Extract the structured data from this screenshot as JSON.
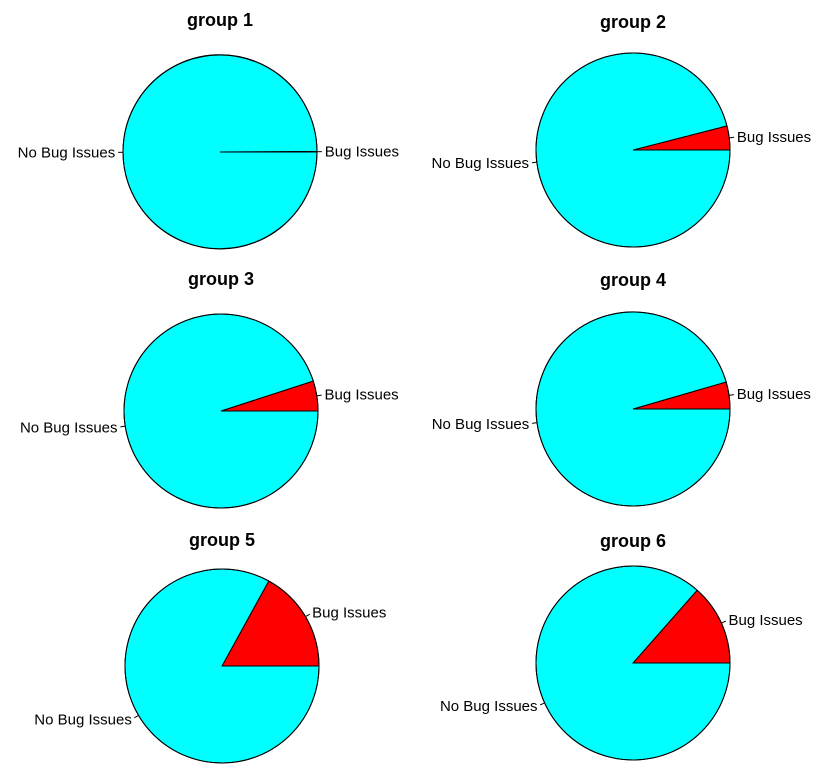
{
  "chart_data": [
    {
      "type": "pie",
      "title": "group 1",
      "slices": [
        {
          "label": "Bug Issues",
          "value": 0.001,
          "color": "#FF0000"
        },
        {
          "label": "No Bug Issues",
          "value": 0.999,
          "color": "#00FFFF"
        }
      ]
    },
    {
      "type": "pie",
      "title": "group 2",
      "slices": [
        {
          "label": "Bug Issues",
          "value": 0.04,
          "color": "#FF0000"
        },
        {
          "label": "No Bug Issues",
          "value": 0.96,
          "color": "#00FFFF"
        }
      ]
    },
    {
      "type": "pie",
      "title": "group 3",
      "slices": [
        {
          "label": "Bug Issues",
          "value": 0.05,
          "color": "#FF0000"
        },
        {
          "label": "No Bug Issues",
          "value": 0.95,
          "color": "#00FFFF"
        }
      ]
    },
    {
      "type": "pie",
      "title": "group 4",
      "slices": [
        {
          "label": "Bug Issues",
          "value": 0.045,
          "color": "#FF0000"
        },
        {
          "label": "No Bug Issues",
          "value": 0.955,
          "color": "#00FFFF"
        }
      ]
    },
    {
      "type": "pie",
      "title": "group 5",
      "slices": [
        {
          "label": "Bug Issues",
          "value": 0.17,
          "color": "#FF0000"
        },
        {
          "label": "No Bug Issues",
          "value": 0.83,
          "color": "#00FFFF"
        }
      ]
    },
    {
      "type": "pie",
      "title": "group 6",
      "slices": [
        {
          "label": "Bug Issues",
          "value": 0.135,
          "color": "#FF0000"
        },
        {
          "label": "No Bug Issues",
          "value": 0.865,
          "color": "#00FFFF"
        }
      ]
    }
  ]
}
